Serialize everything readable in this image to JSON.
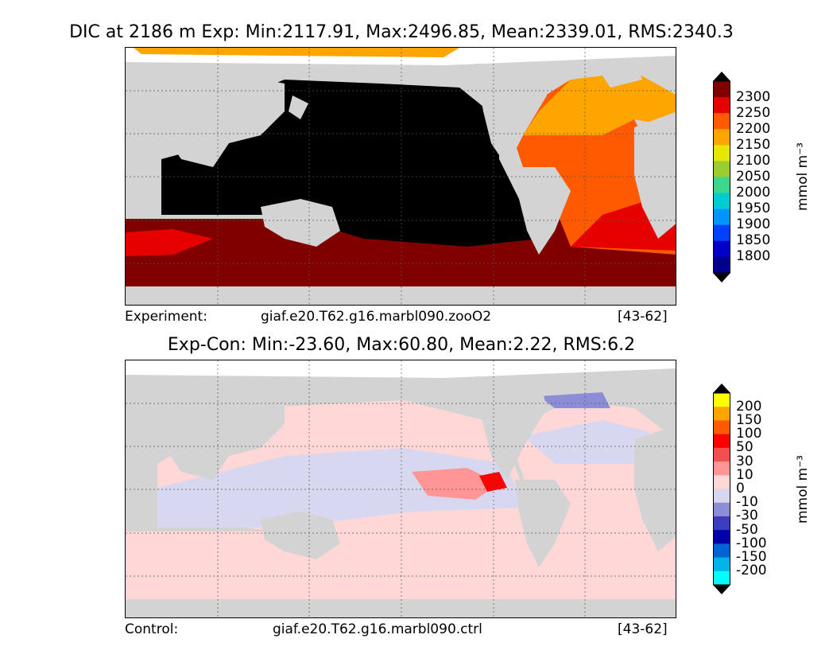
{
  "titles": {
    "top": "DIC at 2186 m Exp: Min:2117.91, Max:2496.85, Mean:2339.01, RMS:2340.3",
    "bottom": "Exp-Con: Min:-23.60, Max:60.80, Mean:2.22, RMS:6.2"
  },
  "footers": {
    "top": {
      "label": "Experiment:",
      "case": "giaf.e20.T62.g16.marbl090.zooO2",
      "years": "[43-62]"
    },
    "bottom": {
      "label": "Control:",
      "case": "giaf.e20.T62.g16.marbl090.ctrl",
      "years": "[43-62]"
    }
  },
  "colorbars": {
    "top": {
      "unit": "mmol m⁻³",
      "ticks": [
        "2300",
        "2250",
        "2200",
        "2150",
        "2100",
        "2050",
        "2000",
        "1950",
        "1900",
        "1850",
        "1800"
      ],
      "colors": [
        "#800000",
        "#e60000",
        "#ff5a00",
        "#ffa500",
        "#e6e600",
        "#9acd32",
        "#3cd78c",
        "#00ccd2",
        "#0096ff",
        "#0040ff",
        "#0000c8",
        "#00008b"
      ],
      "over_color": "#000000",
      "under_color": "#000000"
    },
    "bottom": {
      "unit": "mmol m⁻³",
      "ticks": [
        "200",
        "150",
        "100",
        "50",
        "30",
        "10",
        "0",
        "-10",
        "-30",
        "-50",
        "-100",
        "-150",
        "-200"
      ],
      "colors": [
        "#ffff00",
        "#ffa500",
        "#ff5a00",
        "#ff0000",
        "#f05050",
        "#ff9696",
        "#ffd7d7",
        "#d7d7f0",
        "#8c8cd7",
        "#3c3cbe",
        "#0000aa",
        "#0064d2",
        "#00b4e6",
        "#00ffff"
      ],
      "over_color": "#000000",
      "under_color": "#000000"
    }
  },
  "map": {
    "land_color": "#d3d3d3",
    "missing_color": "#ffffff",
    "grid": true,
    "lon_range": [
      30,
      390
    ],
    "lat_range": [
      -90,
      90
    ]
  }
}
